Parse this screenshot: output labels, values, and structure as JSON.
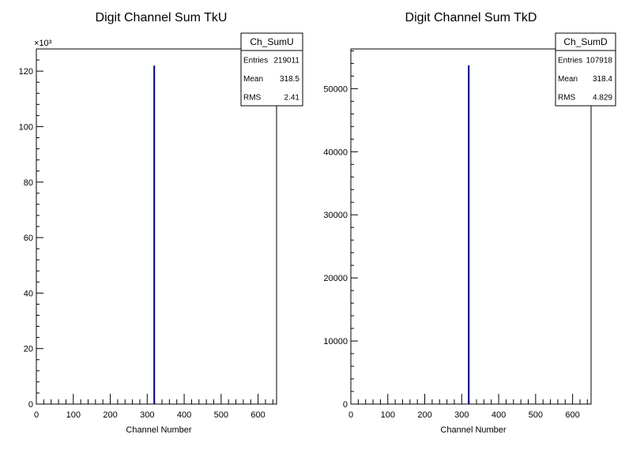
{
  "colors": {
    "background": "#ffffff",
    "frame": "#000000",
    "histogram": "#000080"
  },
  "chart_data": [
    {
      "type": "bar",
      "title": "Digit Channel Sum TkU",
      "xlabel": "Channel Number",
      "ylabel": "",
      "x_range": [
        0,
        650
      ],
      "ylim": [
        0,
        128000
      ],
      "y_multiplier_label": "×10³",
      "x_ticks": [
        "0",
        "100",
        "200",
        "300",
        "400",
        "500",
        "600"
      ],
      "y_ticks": [
        "0",
        "20",
        "40",
        "60",
        "80",
        "100",
        "120"
      ],
      "series": [
        {
          "x": [
            319
          ],
          "values": [
            122000
          ]
        }
      ],
      "stats": {
        "name": "Ch_SumU",
        "rows": [
          {
            "label": "Entries",
            "value": "219011"
          },
          {
            "label": "Mean",
            "value": "318.5"
          },
          {
            "label": "RMS",
            "value": "2.41"
          }
        ]
      }
    },
    {
      "type": "bar",
      "title": "Digit Channel Sum TkD",
      "xlabel": "Channel Number",
      "ylabel": "",
      "x_range": [
        0,
        650
      ],
      "ylim": [
        0,
        56300
      ],
      "y_multiplier_label": "",
      "x_ticks": [
        "0",
        "100",
        "200",
        "300",
        "400",
        "500",
        "600"
      ],
      "y_ticks": [
        "0",
        "10000",
        "20000",
        "30000",
        "40000",
        "50000"
      ],
      "series": [
        {
          "x": [
            319
          ],
          "values": [
            53700
          ]
        }
      ],
      "stats": {
        "name": "Ch_SumD",
        "rows": [
          {
            "label": "Entries",
            "value": "107918"
          },
          {
            "label": "Mean",
            "value": "318.4"
          },
          {
            "label": "RMS",
            "value": "4.829"
          }
        ]
      }
    }
  ]
}
